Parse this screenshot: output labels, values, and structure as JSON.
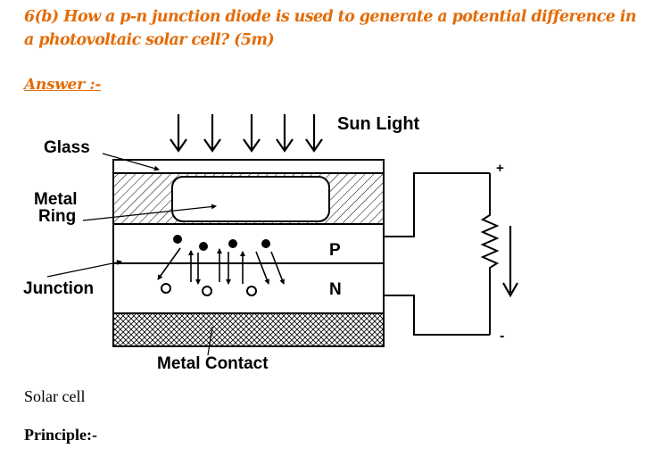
{
  "question": {
    "text": "6(b) How a p-n junction diode is used to generate a potential difference in a photovoltaic solar cell? (5m)"
  },
  "answer_label": "Answer :-",
  "diagram": {
    "labels": {
      "glass": "Glass",
      "metal_ring_line1": "Metal",
      "metal_ring_line2": "Ring",
      "junction": "Junction",
      "sun_light": "Sun Light",
      "p_layer": "P",
      "n_layer": "N",
      "metal_contact": "Metal Contact",
      "plus": "+",
      "minus": "-"
    }
  },
  "caption": "Solar cell",
  "principle_label": "Principle:-"
}
